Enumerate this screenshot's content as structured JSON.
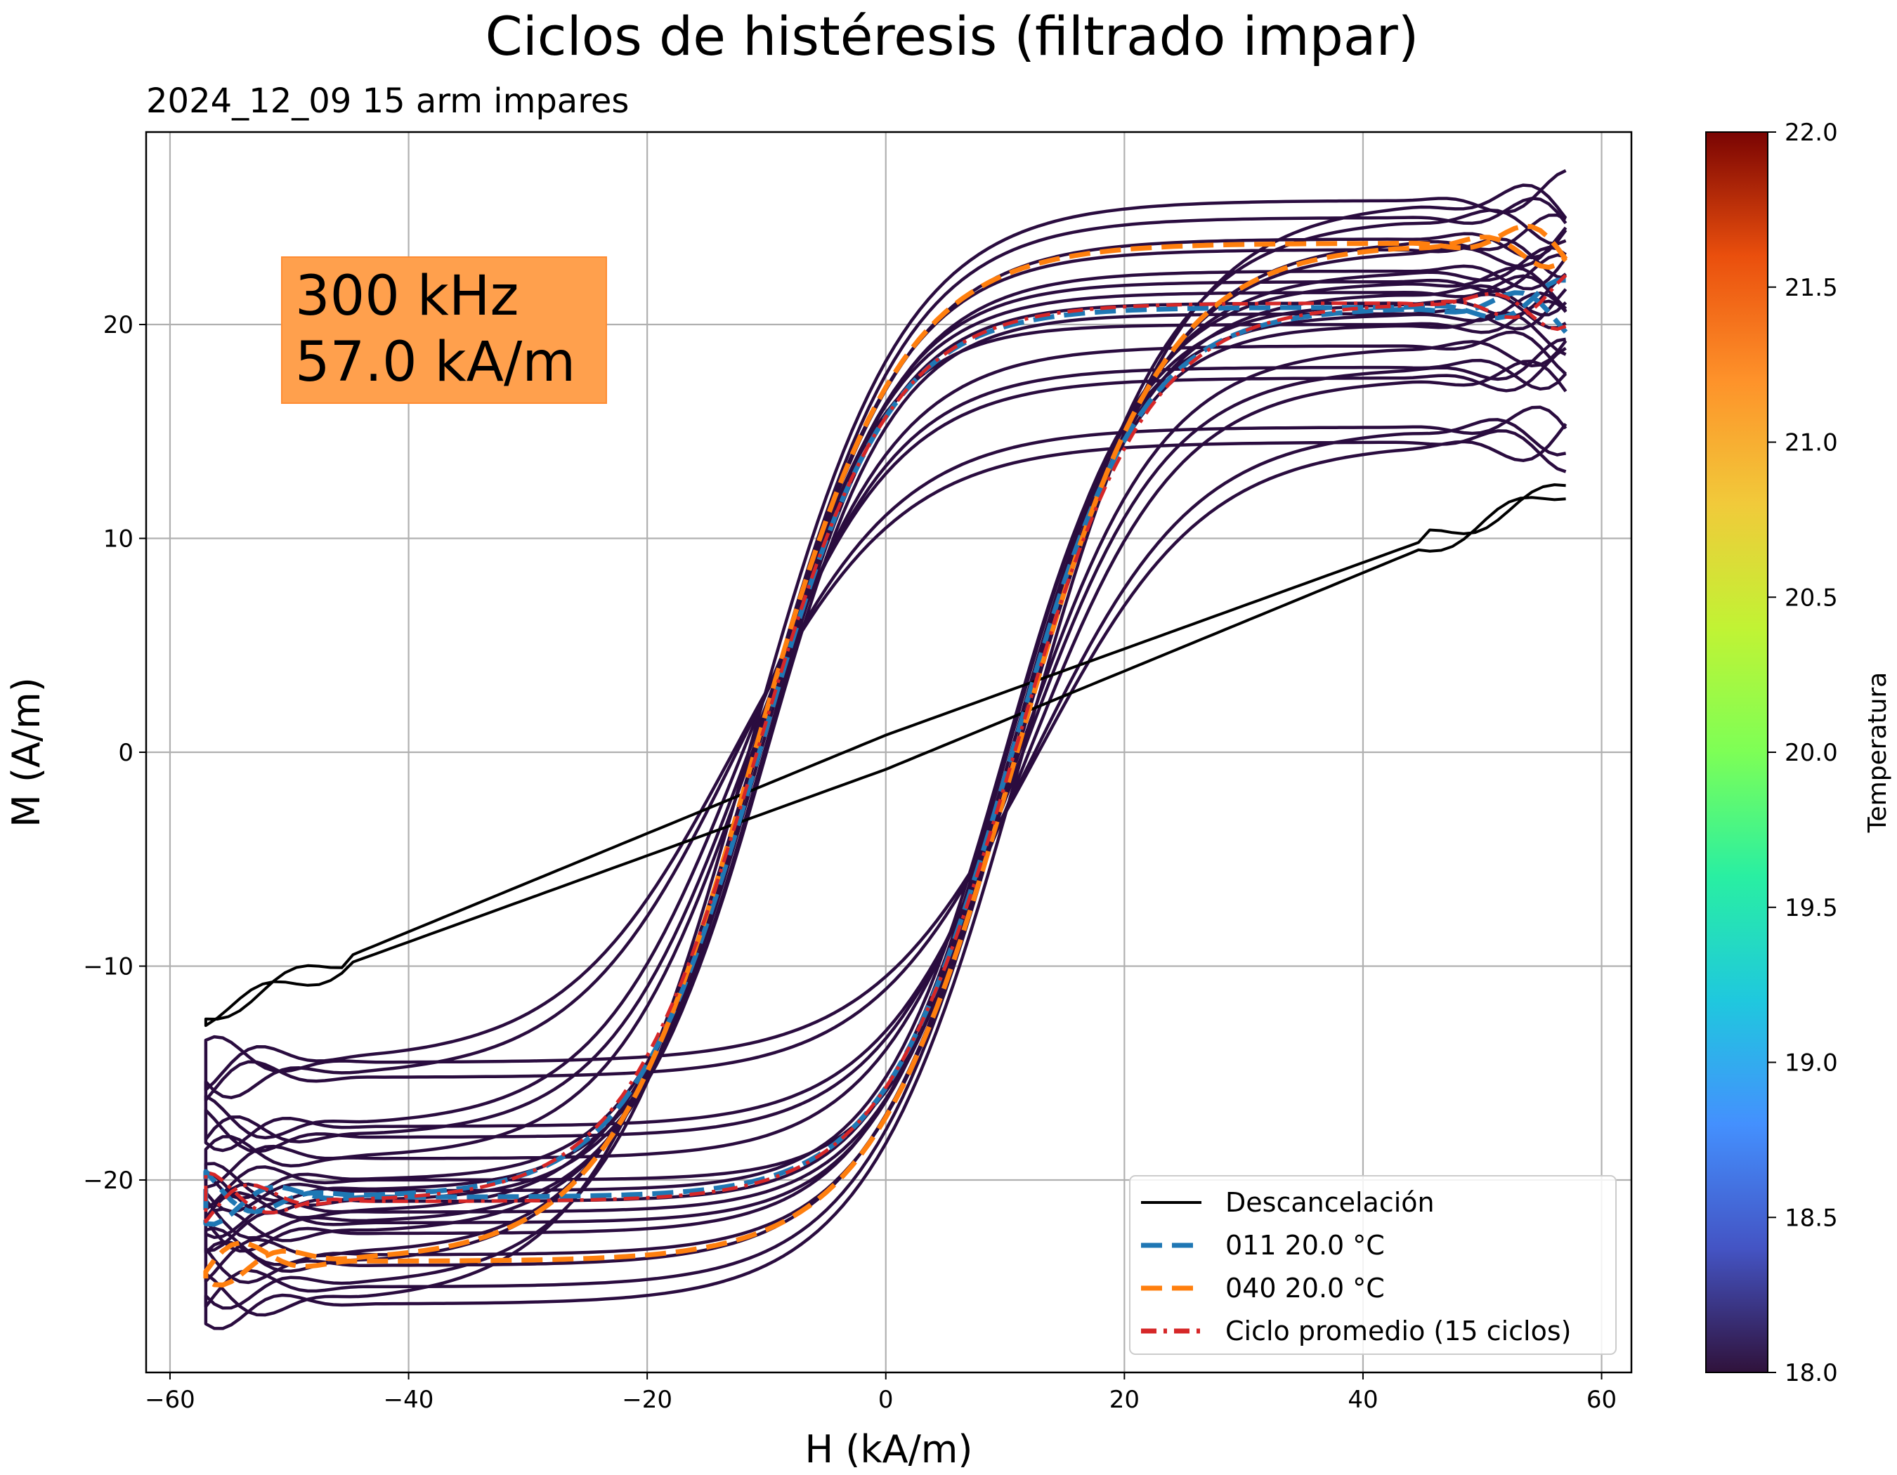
{
  "chart_data": {
    "type": "line",
    "title": "Ciclos de histéresis (filtrado impar)",
    "subtitle": "2024_12_09   15 arm impares",
    "xlabel": "H (kA/m)",
    "ylabel": "M (A/m)",
    "xlim": [
      -62,
      62.5
    ],
    "ylim": [
      -29,
      29
    ],
    "xticks": [
      -60,
      -40,
      -20,
      0,
      20,
      40,
      60
    ],
    "xtick_labels": [
      "−60",
      "−40",
      "−20",
      "0",
      "20",
      "40",
      "60"
    ],
    "yticks": [
      -20,
      -10,
      0,
      10,
      20
    ],
    "ytick_labels": [
      "−20",
      "−10",
      "0",
      "10",
      "20"
    ],
    "grid": true,
    "annotation": {
      "lines": [
        "300 kHz",
        "57.0 kA/m"
      ],
      "box_color": "#ffa04d"
    },
    "colorbar": {
      "label": "Temperatura",
      "range": [
        18.0,
        22.0
      ],
      "ticks": [
        "18.0",
        "18.5",
        "19.0",
        "19.5",
        "20.0",
        "20.5",
        "21.0",
        "21.5",
        "22.0"
      ],
      "colormap": "turbo"
    },
    "legend_position": "lower right",
    "legend": [
      {
        "label": "Descancelación",
        "color": "#000000",
        "style": "solid"
      },
      {
        "label": "011  20.0 °C",
        "color": "#1f77b4",
        "style": "dashed"
      },
      {
        "label": "040  20.0 °C",
        "color": "#ff7f0e",
        "style": "dashed"
      },
      {
        "label": "Ciclo promedio (15 ciclos)",
        "color": "#d62728",
        "style": "dashdot"
      }
    ],
    "cycle_color": "#2a0c3f",
    "series": [
      {
        "name": "Descancelación",
        "kind": "linear",
        "hmax": 57,
        "mmax": 12.3,
        "coercive": 0.8,
        "color": "#000000",
        "width": 4,
        "dash": ""
      },
      {
        "kind": "hysteresis",
        "hmax": 57,
        "msat": 25.8,
        "hc": 11.5,
        "width_param": 13,
        "color": "#2a0c3f",
        "width": 4.5
      },
      {
        "kind": "hysteresis",
        "hmax": 57,
        "msat": 25.0,
        "hc": 11.0,
        "width_param": 12.5,
        "color": "#2a0c3f",
        "width": 4.5
      },
      {
        "kind": "hysteresis",
        "hmax": 57,
        "msat": 23.5,
        "hc": 11.0,
        "width_param": 12,
        "color": "#2a0c3f",
        "width": 4.5
      },
      {
        "kind": "hysteresis",
        "hmax": 57,
        "msat": 22.5,
        "hc": 10.5,
        "width_param": 11.5,
        "color": "#2a0c3f",
        "width": 4.5
      },
      {
        "kind": "hysteresis",
        "hmax": 57,
        "msat": 22.0,
        "hc": 10.5,
        "width_param": 11,
        "color": "#2a0c3f",
        "width": 4.5
      },
      {
        "kind": "hysteresis",
        "hmax": 57,
        "msat": 21.5,
        "hc": 10.8,
        "width_param": 11,
        "color": "#2a0c3f",
        "width": 4.5
      },
      {
        "kind": "hysteresis",
        "hmax": 57,
        "msat": 21.0,
        "hc": 10.2,
        "width_param": 10.5,
        "color": "#2a0c3f",
        "width": 4.5
      },
      {
        "kind": "hysteresis",
        "hmax": 57,
        "msat": 20.5,
        "hc": 10.0,
        "width_param": 10.5,
        "color": "#2a0c3f",
        "width": 4.5
      },
      {
        "kind": "hysteresis",
        "hmax": 57,
        "msat": 20.0,
        "hc": 10.8,
        "width_param": 10,
        "color": "#2a0c3f",
        "width": 4.5
      },
      {
        "kind": "hysteresis",
        "hmax": 57,
        "msat": 19.0,
        "hc": 11.2,
        "width_param": 12,
        "color": "#2a0c3f",
        "width": 4.5
      },
      {
        "kind": "hysteresis",
        "hmax": 57,
        "msat": 18.0,
        "hc": 11.5,
        "width_param": 12,
        "color": "#2a0c3f",
        "width": 4.5
      },
      {
        "kind": "hysteresis",
        "hmax": 57,
        "msat": 17.5,
        "hc": 12.0,
        "width_param": 12.5,
        "color": "#2a0c3f",
        "width": 4.5
      },
      {
        "kind": "hysteresis",
        "hmax": 57,
        "msat": 15.2,
        "hc": 12.5,
        "width_param": 13.5,
        "color": "#2a0c3f",
        "width": 4.5
      },
      {
        "kind": "hysteresis",
        "hmax": 57,
        "msat": 14.5,
        "hc": 12.8,
        "width_param": 14,
        "color": "#2a0c3f",
        "width": 4.5
      },
      {
        "kind": "hysteresis",
        "hmax": 57,
        "msat": 24.0,
        "hc": 11.0,
        "width_param": 12.5,
        "color": "#2a0c3f",
        "width": 4.5
      },
      {
        "name": "011  20.0 °C",
        "kind": "hysteresis",
        "hmax": 57,
        "msat": 20.8,
        "hc": 10.6,
        "width_param": 10.8,
        "color": "#1f77b4",
        "width": 7,
        "dash": "30,14"
      },
      {
        "name": "040  20.0 °C",
        "kind": "hysteresis",
        "hmax": 57,
        "msat": 23.8,
        "hc": 11.0,
        "width_param": 12.2,
        "color": "#ff7f0e",
        "width": 7,
        "dash": "30,14"
      },
      {
        "name": "Ciclo promedio (15 ciclos)",
        "kind": "hysteresis",
        "hmax": 57,
        "msat": 21.0,
        "hc": 10.8,
        "width_param": 11.2,
        "color": "#d62728",
        "width": 5,
        "dash": "22,10,5,10"
      }
    ]
  }
}
